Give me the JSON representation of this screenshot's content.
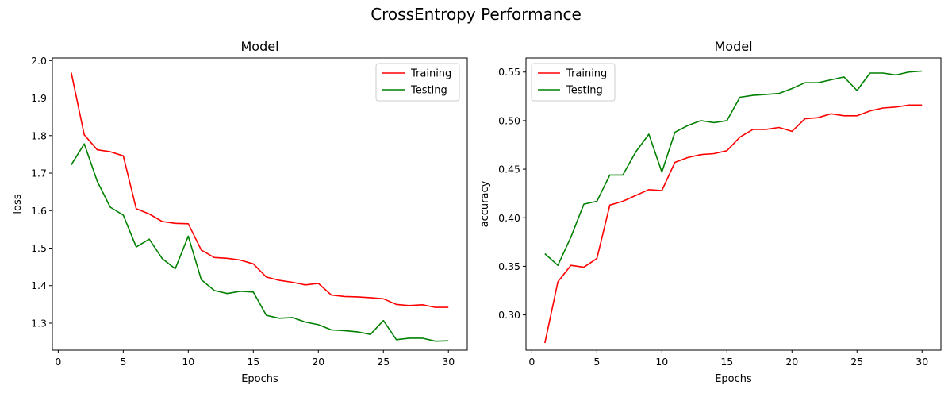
{
  "figure": {
    "suptitle": "CrossEntropy Performance",
    "colors": {
      "train": "#ff0000",
      "test": "#008000"
    }
  },
  "chart_data": [
    {
      "type": "line",
      "title": "Model",
      "xlabel": "Epochs",
      "ylabel": "loss",
      "xlim": [
        -0.45,
        31.45
      ],
      "ylim": [
        1.228,
        2.007
      ],
      "xticks": [
        0,
        5,
        10,
        15,
        20,
        25,
        30
      ],
      "yticks": [
        1.3,
        1.4,
        1.5,
        1.6,
        1.7,
        1.8,
        1.9,
        2.0
      ],
      "ytick_decimals": 1,
      "legend": "top-right",
      "grid": false,
      "x": [
        1,
        2,
        3,
        4,
        5,
        6,
        7,
        8,
        9,
        10,
        11,
        12,
        13,
        14,
        15,
        16,
        17,
        18,
        19,
        20,
        21,
        22,
        23,
        24,
        25,
        26,
        27,
        28,
        29,
        30
      ],
      "series": [
        {
          "name": "Training",
          "color": "#ff0000",
          "values": [
            1.968,
            1.802,
            1.762,
            1.757,
            1.746,
            1.605,
            1.591,
            1.571,
            1.566,
            1.565,
            1.495,
            1.475,
            1.473,
            1.468,
            1.458,
            1.423,
            1.414,
            1.409,
            1.402,
            1.406,
            1.375,
            1.371,
            1.37,
            1.368,
            1.365,
            1.35,
            1.347,
            1.349,
            1.342,
            1.342
          ]
        },
        {
          "name": "Testing",
          "color": "#008000",
          "values": [
            1.722,
            1.778,
            1.678,
            1.609,
            1.588,
            1.503,
            1.524,
            1.472,
            1.445,
            1.532,
            1.416,
            1.387,
            1.379,
            1.385,
            1.383,
            1.321,
            1.313,
            1.315,
            1.303,
            1.296,
            1.282,
            1.28,
            1.277,
            1.27,
            1.307,
            1.256,
            1.26,
            1.26,
            1.252,
            1.253
          ]
        }
      ]
    },
    {
      "type": "line",
      "title": "Model",
      "xlabel": "Epochs",
      "ylabel": "accuracy",
      "xlim": [
        -0.45,
        31.45
      ],
      "ylim": [
        0.2637,
        0.5645
      ],
      "xticks": [
        0,
        5,
        10,
        15,
        20,
        25,
        30
      ],
      "yticks": [
        0.3,
        0.35,
        0.4,
        0.45,
        0.5,
        0.55
      ],
      "ytick_decimals": 2,
      "legend": "top-left",
      "grid": false,
      "x": [
        1,
        2,
        3,
        4,
        5,
        6,
        7,
        8,
        9,
        10,
        11,
        12,
        13,
        14,
        15,
        16,
        17,
        18,
        19,
        20,
        21,
        22,
        23,
        24,
        25,
        26,
        27,
        28,
        29,
        30
      ],
      "series": [
        {
          "name": "Training",
          "color": "#ff0000",
          "values": [
            0.271,
            0.334,
            0.351,
            0.349,
            0.358,
            0.413,
            0.417,
            0.423,
            0.429,
            0.428,
            0.457,
            0.462,
            0.465,
            0.466,
            0.469,
            0.483,
            0.491,
            0.491,
            0.493,
            0.489,
            0.502,
            0.503,
            0.507,
            0.505,
            0.505,
            0.51,
            0.513,
            0.514,
            0.516,
            0.516
          ]
        },
        {
          "name": "Testing",
          "color": "#008000",
          "values": [
            0.363,
            0.351,
            0.38,
            0.414,
            0.417,
            0.444,
            0.444,
            0.468,
            0.486,
            0.447,
            0.488,
            0.495,
            0.5,
            0.498,
            0.5,
            0.524,
            0.526,
            0.527,
            0.528,
            0.533,
            0.539,
            0.539,
            0.542,
            0.545,
            0.531,
            0.549,
            0.549,
            0.547,
            0.55,
            0.551
          ]
        }
      ]
    }
  ]
}
